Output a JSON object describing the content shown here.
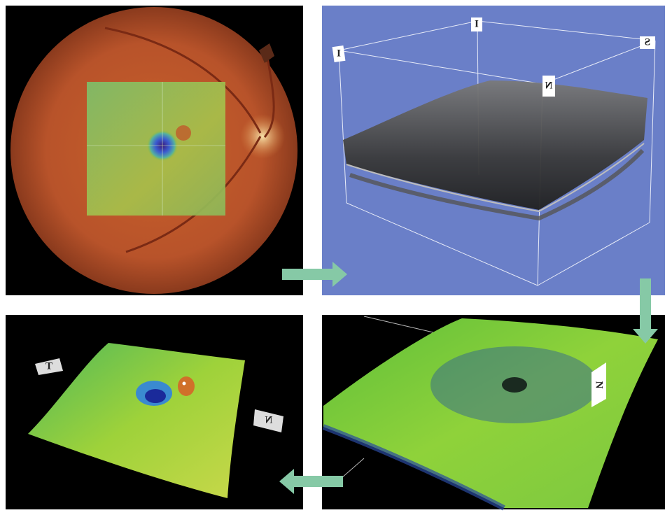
{
  "panels": [
    {
      "labels": []
    },
    {
      "labels": [
        "I",
        "I",
        "S",
        "N"
      ]
    },
    {
      "labels": [
        "N"
      ]
    },
    {
      "labels": [
        "T",
        "N"
      ]
    }
  ]
}
